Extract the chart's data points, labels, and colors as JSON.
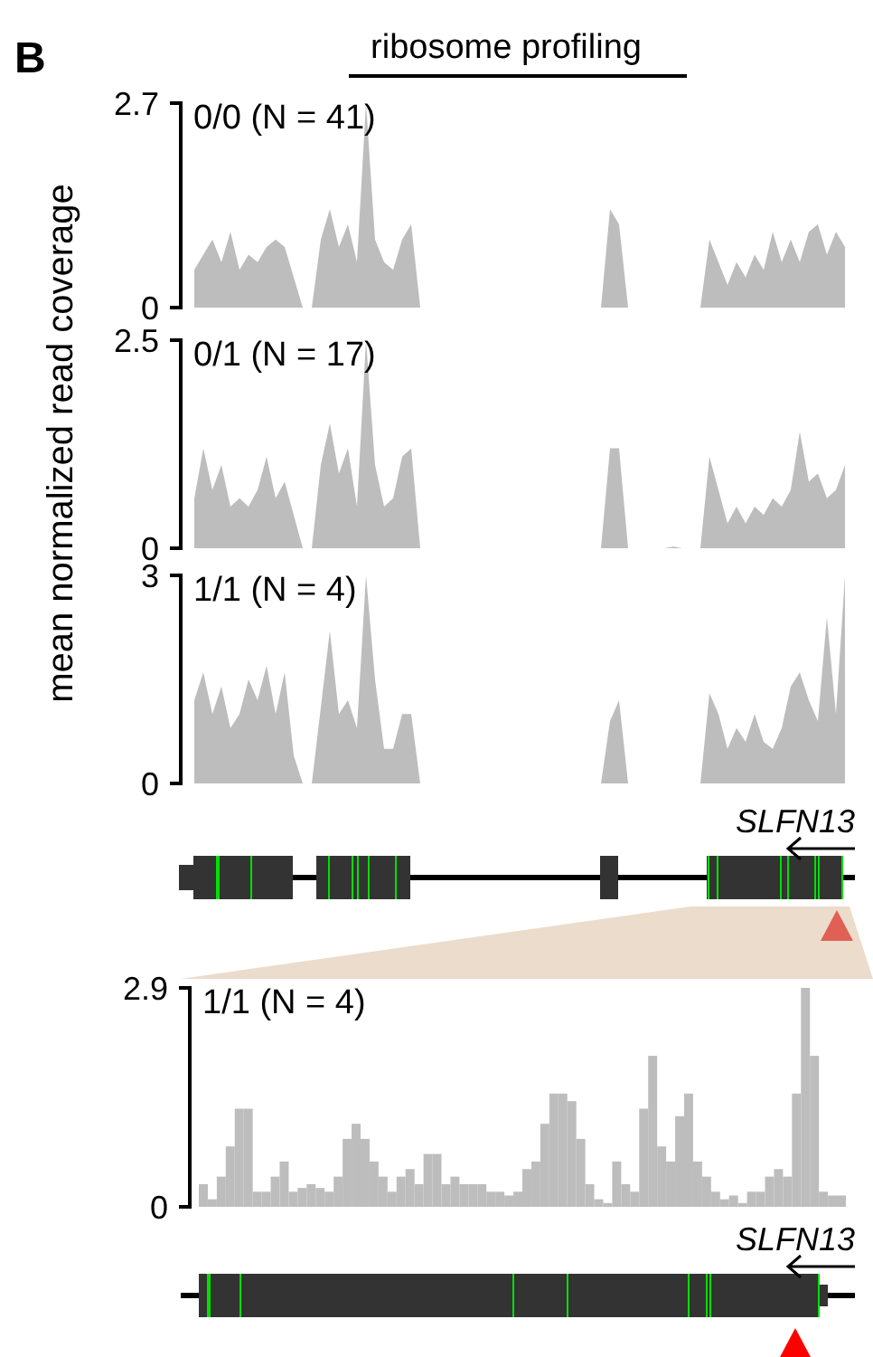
{
  "chart_data": [
    {
      "type": "area",
      "title": "0/0 (N = 41)",
      "subtitle": "ribosome profiling",
      "ylabel": "mean normalized read coverage",
      "annotations": [
        "B"
      ],
      "color": "#bdbdbd",
      "ylim": [
        0,
        2.7
      ],
      "yticks": [
        0,
        2.7
      ],
      "categories": [
        null,
        null,
        null,
        null,
        null,
        null,
        null,
        null,
        null,
        null,
        null,
        null,
        null,
        null,
        null,
        null,
        null,
        null,
        null,
        null,
        null,
        null,
        null,
        null,
        null,
        null,
        null,
        null,
        null,
        null,
        null,
        null,
        null,
        null,
        null,
        null,
        null,
        null,
        null,
        null,
        null,
        null,
        null,
        null,
        null,
        null,
        null,
        null,
        null,
        null,
        null,
        null,
        null,
        null,
        null,
        null,
        null,
        null,
        null,
        null,
        null,
        null,
        null,
        null,
        null,
        null,
        null,
        null,
        null,
        null,
        null,
        null,
        null
      ],
      "values": [
        0.5,
        0.7,
        0.9,
        0.6,
        1.0,
        0.5,
        0.7,
        0.6,
        0.8,
        0.9,
        0.8,
        0.4,
        0,
        0,
        0.9,
        1.3,
        0.8,
        1.1,
        0.6,
        2.7,
        0.9,
        0.6,
        0.5,
        0.9,
        1.1,
        0,
        0,
        0,
        0,
        0,
        0,
        0,
        0,
        0,
        0,
        0,
        0,
        0,
        0,
        0,
        0,
        0,
        0,
        0,
        0,
        0,
        1.3,
        1.1,
        0,
        0,
        0,
        0,
        0,
        0,
        0,
        0,
        0,
        0.9,
        0.6,
        0.3,
        0.6,
        0.4,
        0.7,
        0.5,
        1.0,
        0.6,
        0.9,
        0.6,
        1.0,
        1.1,
        0.7,
        1.0,
        0.8
      ]
    },
    {
      "type": "area",
      "title": "0/1 (N = 17)",
      "color": "#bdbdbd",
      "ylim": [
        0,
        2.5
      ],
      "yticks": [
        0,
        2.5
      ],
      "categories": [
        null,
        null,
        null,
        null,
        null,
        null,
        null,
        null,
        null,
        null,
        null,
        null,
        null,
        null,
        null,
        null,
        null,
        null,
        null,
        null,
        null,
        null,
        null,
        null,
        null,
        null,
        null,
        null,
        null,
        null,
        null,
        null,
        null,
        null,
        null,
        null,
        null,
        null,
        null,
        null,
        null,
        null,
        null,
        null,
        null,
        null,
        null,
        null,
        null,
        null,
        null,
        null,
        null,
        null,
        null,
        null,
        null,
        null,
        null,
        null,
        null,
        null,
        null,
        null,
        null,
        null,
        null,
        null,
        null,
        null,
        null,
        null,
        null
      ],
      "values": [
        0.6,
        1.2,
        0.7,
        1.0,
        0.5,
        0.6,
        0.5,
        0.7,
        1.1,
        0.6,
        0.8,
        0.4,
        0,
        0,
        1.0,
        1.5,
        0.9,
        1.2,
        0.5,
        2.5,
        1.0,
        0.5,
        0.6,
        1.1,
        1.2,
        0,
        0,
        0,
        0,
        0,
        0,
        0,
        0,
        0,
        0,
        0,
        0,
        0,
        0,
        0,
        0,
        0,
        0,
        0,
        0,
        0,
        1.2,
        1.2,
        0,
        0,
        0,
        0,
        0,
        0.02,
        0,
        0,
        0,
        1.1,
        0.7,
        0.3,
        0.5,
        0.3,
        0.5,
        0.4,
        0.6,
        0.5,
        0.7,
        1.4,
        0.8,
        0.9,
        0.6,
        0.7,
        1.0
      ]
    },
    {
      "type": "area",
      "title": "1/1 (N = 4)",
      "annotations": [
        "SLFN13"
      ],
      "color": "#bdbdbd",
      "ylim": [
        0,
        3
      ],
      "yticks": [
        0,
        3
      ],
      "categories": [
        null,
        null,
        null,
        null,
        null,
        null,
        null,
        null,
        null,
        null,
        null,
        null,
        null,
        null,
        null,
        null,
        null,
        null,
        null,
        null,
        null,
        null,
        null,
        null,
        null,
        null,
        null,
        null,
        null,
        null,
        null,
        null,
        null,
        null,
        null,
        null,
        null,
        null,
        null,
        null,
        null,
        null,
        null,
        null,
        null,
        null,
        null,
        null,
        null,
        null,
        null,
        null,
        null,
        null,
        null,
        null,
        null,
        null,
        null,
        null,
        null,
        null,
        null,
        null,
        null,
        null,
        null,
        null,
        null,
        null,
        null,
        null,
        null
      ],
      "values": [
        1.2,
        1.6,
        1.0,
        1.4,
        0.8,
        1.0,
        1.5,
        1.2,
        1.7,
        1.0,
        1.6,
        0.4,
        0,
        0,
        1.1,
        2.2,
        1.0,
        1.2,
        0.8,
        3.0,
        1.5,
        0.5,
        0.5,
        1.0,
        1.0,
        0,
        0,
        0,
        0,
        0,
        0,
        0,
        0,
        0,
        0,
        0,
        0,
        0,
        0,
        0,
        0,
        0,
        0,
        0,
        0,
        0,
        0.9,
        1.2,
        0,
        0,
        0,
        0,
        0,
        0,
        0,
        0,
        0,
        1.3,
        1.0,
        0.5,
        0.8,
        0.6,
        1.0,
        0.6,
        0.5,
        0.8,
        1.4,
        1.6,
        1.2,
        0.9,
        2.4,
        1.0,
        3.0
      ]
    },
    {
      "type": "bar",
      "title": "1/1 (N = 4)",
      "annotations": [
        "SLFN13"
      ],
      "color": "#bdbdbd",
      "ylim": [
        0,
        2.9
      ],
      "yticks": [
        0,
        2.9
      ],
      "categories": [
        null,
        null,
        null,
        null,
        null,
        null,
        null,
        null,
        null,
        null,
        null,
        null,
        null,
        null,
        null,
        null,
        null,
        null,
        null,
        null,
        null,
        null,
        null,
        null,
        null,
        null,
        null,
        null,
        null,
        null,
        null,
        null,
        null,
        null,
        null,
        null,
        null,
        null,
        null,
        null,
        null,
        null,
        null,
        null,
        null,
        null,
        null,
        null,
        null,
        null,
        null,
        null,
        null,
        null,
        null,
        null,
        null,
        null,
        null,
        null,
        null,
        null,
        null,
        null,
        null,
        null,
        null,
        null,
        null,
        null,
        null,
        null
      ],
      "values": [
        0.3,
        0.1,
        0.4,
        0.8,
        1.3,
        1.3,
        0.2,
        0.2,
        0.4,
        0.6,
        0.2,
        0.25,
        0.3,
        0.25,
        0.2,
        0.4,
        0.9,
        1.1,
        0.9,
        0.6,
        0.4,
        0.2,
        0.4,
        0.5,
        0.3,
        0.7,
        0.7,
        0.3,
        0.4,
        0.3,
        0.3,
        0.3,
        0.2,
        0.2,
        0.15,
        0.2,
        0.5,
        0.6,
        1.1,
        1.5,
        1.5,
        1.4,
        0.9,
        0.3,
        0.1,
        0.05,
        0.6,
        0.3,
        0.2,
        1.3,
        2.0,
        0.8,
        0.6,
        1.2,
        1.5,
        0.6,
        0.4,
        0.2,
        0.1,
        0.15,
        0.05,
        0.2,
        0.2,
        0.4,
        0.5,
        0.4,
        1.5,
        2.9,
        2.0,
        0.2,
        0.15,
        0.15
      ]
    }
  ]
}
